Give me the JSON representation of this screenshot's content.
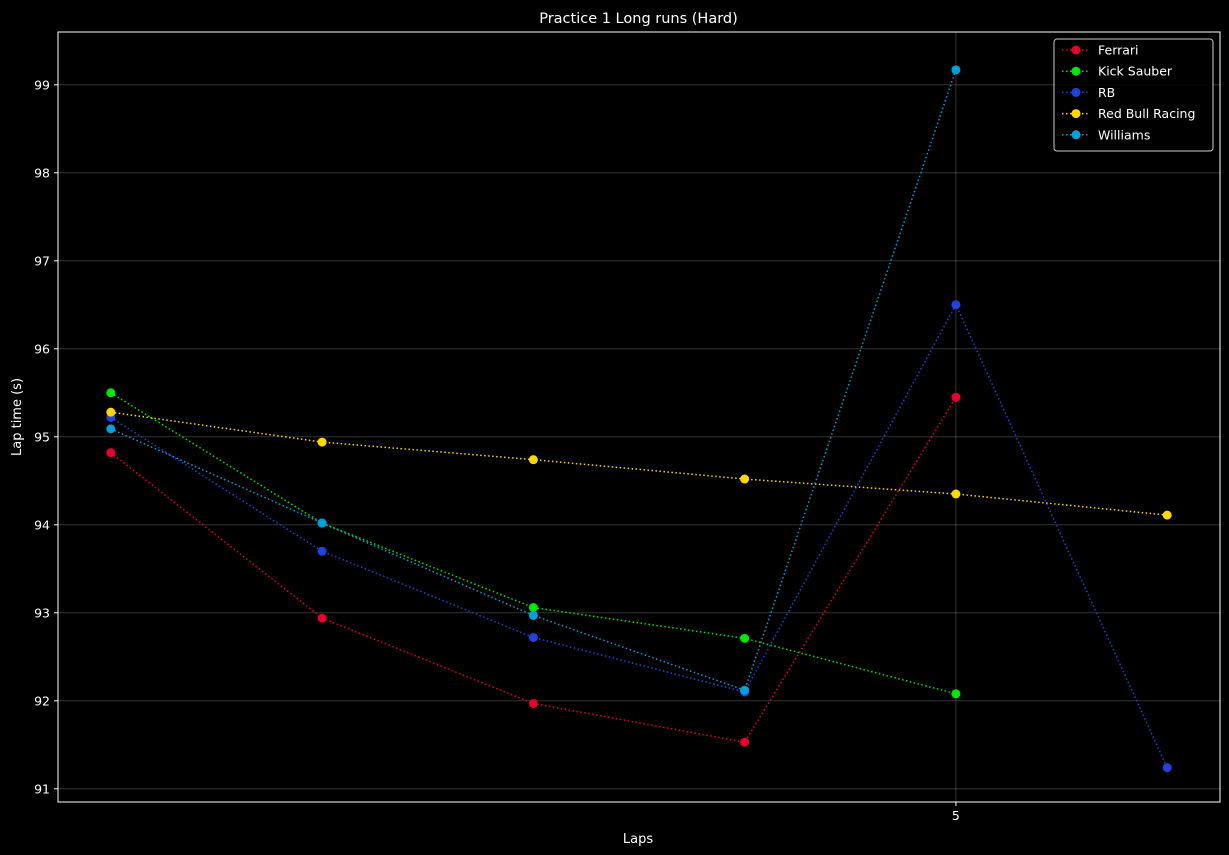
{
  "chart_data": {
    "type": "line",
    "title": "Practice 1 Long runs (Hard)",
    "xlabel": "Laps",
    "ylabel": "Lap time (s)",
    "xlim": [
      0.75,
      6.25
    ],
    "ylim": [
      90.85,
      99.6
    ],
    "x_ticks": [
      5
    ],
    "y_ticks": [
      91,
      92,
      93,
      94,
      95,
      96,
      97,
      98,
      99
    ],
    "grid": true,
    "legend_position": "top-right",
    "series": [
      {
        "name": "Ferrari",
        "color": "#e8002d",
        "x": [
          1,
          2,
          3,
          4,
          5
        ],
        "values": [
          94.82,
          92.94,
          91.97,
          91.53,
          95.45
        ]
      },
      {
        "name": "Kick Sauber",
        "color": "#00e701",
        "x": [
          1,
          2,
          3,
          4,
          5
        ],
        "values": [
          95.5,
          94.02,
          93.06,
          92.71,
          92.08
        ]
      },
      {
        "name": "RB",
        "color": "#2043dc",
        "x": [
          1,
          2,
          3,
          4,
          5,
          6
        ],
        "values": [
          95.22,
          93.7,
          92.72,
          92.1,
          96.5,
          91.24
        ]
      },
      {
        "name": "Red Bull Racing",
        "color": "#fcd700",
        "x": [
          1,
          2,
          3,
          4,
          5,
          6
        ],
        "values": [
          95.28,
          94.94,
          94.74,
          94.52,
          94.35,
          94.11
        ]
      },
      {
        "name": "Williams",
        "color": "#00a0dd",
        "x": [
          1,
          2,
          3,
          4,
          5
        ],
        "values": [
          95.09,
          94.02,
          92.97,
          92.12,
          99.17
        ]
      }
    ]
  }
}
